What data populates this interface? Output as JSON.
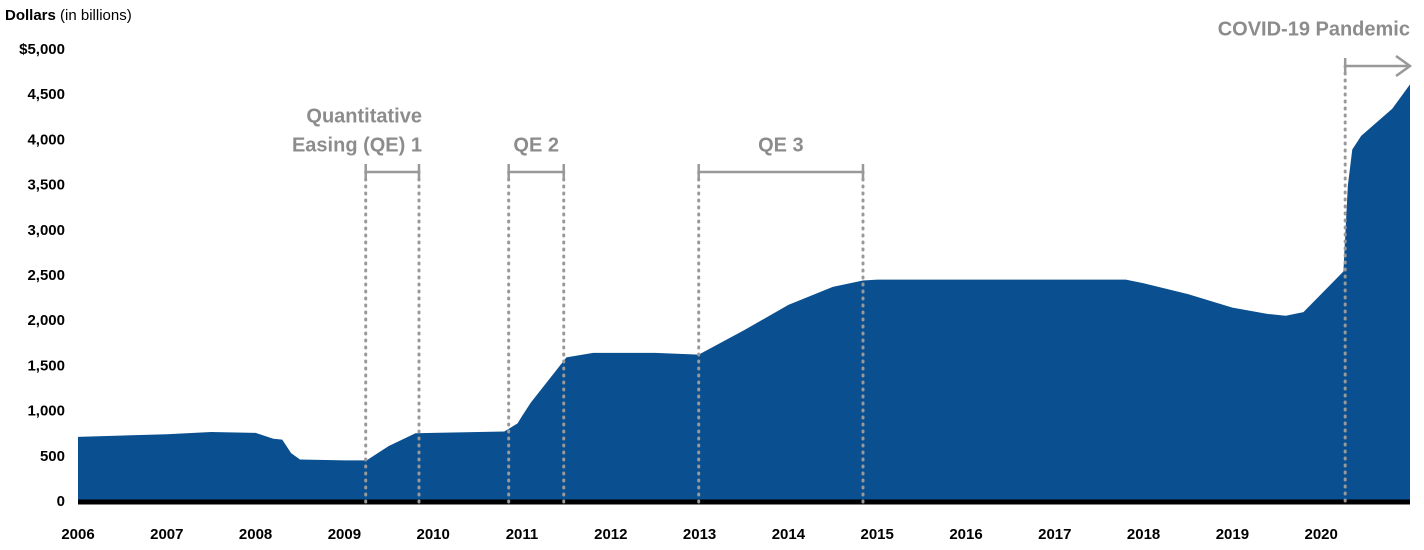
{
  "chart_data": {
    "type": "area",
    "y_label_bold": "Dollars",
    "y_label_rest": "(in billions)",
    "color": "#0a5091",
    "x": [
      2006.0,
      2007.0,
      2007.5,
      2008.0,
      2008.2,
      2008.3,
      2008.4,
      2008.5,
      2009.0,
      2009.25,
      2009.5,
      2009.8,
      2010.0,
      2010.8,
      2010.95,
      2011.0,
      2011.1,
      2011.5,
      2011.8,
      2012.0,
      2012.5,
      2012.99,
      2013.5,
      2014.0,
      2014.5,
      2014.84,
      2015.0,
      2017.8,
      2018.0,
      2018.5,
      2019.0,
      2019.4,
      2019.6,
      2019.8,
      2020.2,
      2020.25,
      2020.3,
      2020.35,
      2020.45,
      2020.8,
      2021.0
    ],
    "values": [
      720,
      750,
      775,
      765,
      700,
      690,
      540,
      470,
      460,
      460,
      620,
      760,
      765,
      780,
      870,
      950,
      1100,
      1600,
      1650,
      1650,
      1650,
      1630,
      1900,
      2180,
      2380,
      2450,
      2460,
      2460,
      2420,
      2300,
      2150,
      2080,
      2060,
      2100,
      2500,
      2550,
      3500,
      3900,
      4050,
      4350,
      4620
    ],
    "xlim": [
      2006,
      2021
    ],
    "xticks": [
      2006,
      2007,
      2008,
      2009,
      2010,
      2011,
      2012,
      2013,
      2014,
      2015,
      2016,
      2017,
      2018,
      2019,
      2020
    ],
    "ylim": [
      0,
      5000
    ],
    "yticks": [
      0,
      500,
      {
        "value": 1000,
        "label": "1,000"
      },
      {
        "value": 1500,
        "label": "1,500"
      },
      {
        "value": 2000,
        "label": "2,000"
      },
      {
        "value": 2500,
        "label": "2,500"
      },
      {
        "value": 3000,
        "label": "3,000"
      },
      {
        "value": 3500,
        "label": "3,500"
      },
      {
        "value": 4000,
        "label": "4,000"
      },
      {
        "value": 4500,
        "label": "4,500"
      },
      {
        "value": 5000,
        "label": "$5,000"
      }
    ],
    "annotations": [
      {
        "text": [
          "Quantitative",
          "Easing (QE) 1"
        ],
        "start": 2009.24,
        "end": 2009.84
      },
      {
        "text": "QE 2",
        "start": 2010.85,
        "end": 2011.47
      },
      {
        "text": "QE 3",
        "start": 2012.99,
        "end": 2014.84
      },
      {
        "text": "COVID-19 Pandemic",
        "start": 2020.27
      }
    ]
  }
}
